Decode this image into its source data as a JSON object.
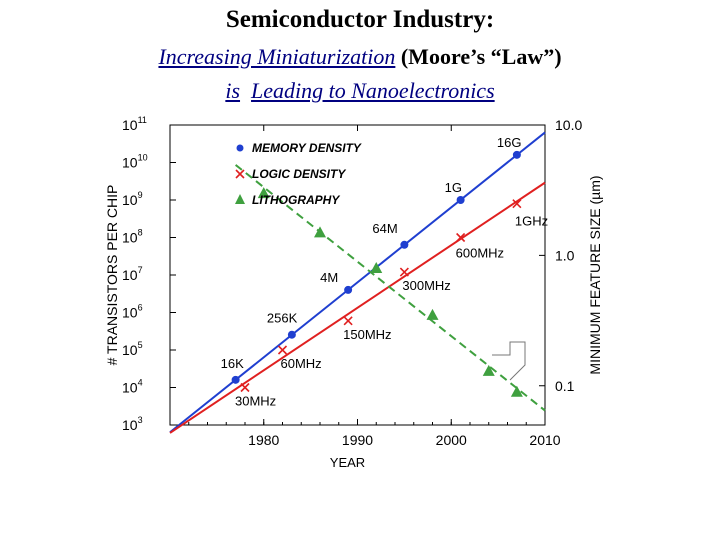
{
  "slide": {
    "title": "Semiconductor Industry:",
    "subtitle_italic": "Increasing Miniaturization",
    "subtitle_paren": "(Moore’s “Law”)",
    "subtitle2_is": "is",
    "subtitle2_italic": "Leading to Nanoelectronics"
  },
  "chart_data": {
    "type": "scatter",
    "xlabel": "YEAR",
    "ylabel_left": "# TRANSISTORS PER CHIP",
    "ylabel_right": "MINIMUM FEATURE SIZE (µm)",
    "xlim": [
      1970,
      2010
    ],
    "ylim_left_log10": [
      3,
      11
    ],
    "ylim_right": [
      0.05,
      10.0
    ],
    "x_ticks": [
      "1980",
      "1990",
      "2000",
      "2010"
    ],
    "y_ticks_left": [
      {
        "base": "10",
        "exp": "11",
        "p": 11
      },
      {
        "base": "10",
        "exp": "10",
        "p": 10
      },
      {
        "base": "10",
        "exp": "9",
        "p": 9
      },
      {
        "base": "10",
        "exp": "8",
        "p": 8
      },
      {
        "base": "10",
        "exp": "7",
        "p": 7
      },
      {
        "base": "10",
        "exp": "6",
        "p": 6
      },
      {
        "base": "10",
        "exp": "5",
        "p": 5
      },
      {
        "base": "10",
        "exp": "4",
        "p": 4
      },
      {
        "base": "10",
        "exp": "3",
        "p": 3
      }
    ],
    "y_ticks_right": [
      "10.0",
      "1.0",
      "0.1"
    ],
    "legend_position": "top-left",
    "series": [
      {
        "name": "MEMORY DENSITY",
        "axis": "left",
        "marker": "circle",
        "color": "#1f3fd0",
        "line": "solid",
        "x": [
          1977,
          1983,
          1989,
          1995,
          2001,
          2007
        ],
        "y": [
          16000,
          256000,
          4000000,
          64000000,
          1000000000,
          16000000000
        ],
        "labels": [
          "16K",
          "256K",
          "4M",
          "64M",
          "1G",
          "16G"
        ]
      },
      {
        "name": "LOGIC DENSITY",
        "axis": "left",
        "marker": "x",
        "color": "#e02020",
        "line": "solid",
        "x": [
          1978,
          1982,
          1989,
          1995,
          2001,
          2007
        ],
        "y": [
          10000,
          100000,
          600000,
          12000000,
          100000000,
          800000000
        ],
        "labels": [
          "30MHz",
          "60MHz",
          "150MHz",
          "300MHz",
          "600MHz",
          "1GHz"
        ]
      },
      {
        "name": "LITHOGRAPHY",
        "axis": "right",
        "marker": "triangle",
        "color": "#3fa03f",
        "line": "dashed",
        "x": [
          1980,
          1986,
          1992,
          1998,
          2004,
          2007
        ],
        "y": [
          3.0,
          1.5,
          0.8,
          0.35,
          0.13,
          0.09
        ],
        "labels": []
      }
    ]
  },
  "colors": {
    "memory": "#1f3fd0",
    "logic": "#e02020",
    "litho": "#3fa03f",
    "subtitle": "#000080"
  }
}
